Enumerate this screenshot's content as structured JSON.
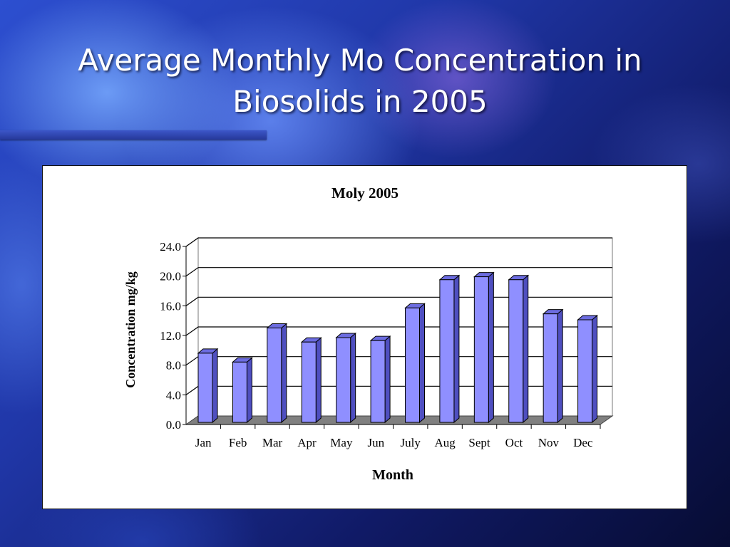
{
  "slide": {
    "title_line1": "Average Monthly Mo Concentration in",
    "title_line2": "Biosolids in 2005"
  },
  "colors": {
    "bar_front": "#8f8fff",
    "bar_side": "#4f4fc0",
    "bar_top": "#6c6ce0",
    "floor": "#808080",
    "background": "#1f35a6"
  },
  "chart_data": {
    "type": "bar",
    "title": "Moly 2005",
    "xlabel": "Month",
    "ylabel": "Concentration  mg/kg",
    "categories": [
      "Jan",
      "Feb",
      "Mar",
      "Apr",
      "May",
      "Jun",
      "July",
      "Aug",
      "Sept",
      "Oct",
      "Nov",
      "Dec"
    ],
    "values": [
      9.9,
      8.7,
      13.3,
      11.4,
      12.0,
      11.6,
      16.0,
      19.8,
      20.2,
      19.8,
      15.2,
      14.4
    ],
    "ylim": [
      0,
      24
    ],
    "yticks": [
      "0.0",
      "4.0",
      "8.0",
      "12.0",
      "16.0",
      "20.0",
      "24.0"
    ],
    "grid": true,
    "legend": "none"
  }
}
